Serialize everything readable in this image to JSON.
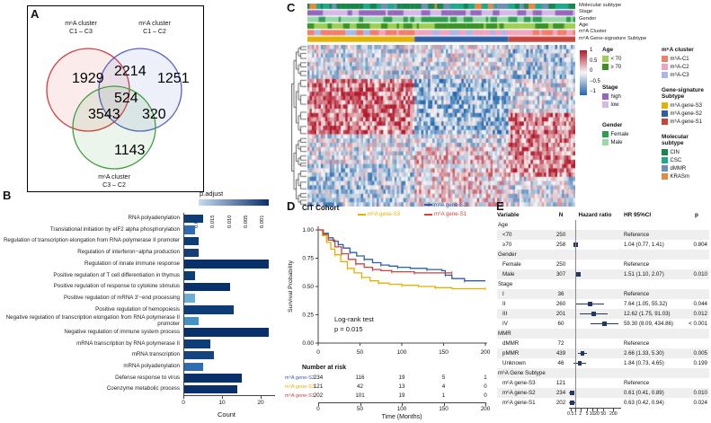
{
  "panels": {
    "a": "A",
    "b": "B",
    "c": "C",
    "d": "D",
    "e": "E"
  },
  "chart_data": [
    {
      "id": "venn",
      "type": "venn",
      "set_labels": [
        [
          "m⁶A cluster",
          "C1 – C3"
        ],
        [
          "m⁶A cluster",
          "C1 – C2"
        ],
        [
          "m⁶A cluster",
          "C3 – C2"
        ]
      ],
      "counts": {
        "c1c3_only": "1929",
        "c1c2_only": "1251",
        "c3c2_only": "1143",
        "c1c3_c1c2": "2214",
        "c1c3_c3c2": "3543",
        "c1c2_c3c2": "320",
        "center": "524"
      },
      "colors": {
        "c1c3": "#d93a3a",
        "c1c2": "#5262c7",
        "c3c2": "#3f9e3f"
      }
    },
    {
      "id": "go_bar",
      "type": "bar",
      "orientation": "horizontal",
      "legend_title": "p.adjust",
      "legend_labels": [
        "0.020",
        "0.015",
        "0.010",
        "0.005",
        "0.001"
      ],
      "legend_gradient": [
        "#c6dbef",
        "#08306b"
      ],
      "xlabel": "Count",
      "xticks": [
        "0",
        "10",
        "20"
      ],
      "xlim": [
        0,
        24
      ],
      "bars": [
        {
          "label": "RNA polyadenylation",
          "value": 5,
          "color": "#0d3d77"
        },
        {
          "label": "Translational initiation by eIF2 alpha phosphorylation",
          "value": 3,
          "color": "#2e6db4"
        },
        {
          "label": "Regulation of transcription elongation from RNA polymerase II promoter",
          "value": 4,
          "color": "#0d3d77"
        },
        {
          "label": "Regulation of interferon−alpha production",
          "value": 4,
          "color": "#123f77"
        },
        {
          "label": "Regulation of innate immune response",
          "value": 22,
          "color": "#08306b"
        },
        {
          "label": "Positive regulation of T cell differentiation in thymus",
          "value": 3,
          "color": "#0d3d77"
        },
        {
          "label": "Positive regulation of response to cytokine stimulus",
          "value": 12,
          "color": "#08306b"
        },
        {
          "label": "Positive regulation of mRNA 3'−end processing",
          "value": 3,
          "color": "#6baed6"
        },
        {
          "label": "Positive regulation of hemopoiesis",
          "value": 13,
          "color": "#0d3d77"
        },
        {
          "label": "Negative regulation of transcription elongation from RNA polymerase II promoter",
          "value": 4,
          "color": "#4292c6"
        },
        {
          "label": "Negative regulation of immune system process",
          "value": 22,
          "color": "#08306b"
        },
        {
          "label": "mRNA transcription by RNA polymerase II",
          "value": 7,
          "color": "#0d3d77"
        },
        {
          "label": "mRNA transcription",
          "value": 8,
          "color": "#16457e"
        },
        {
          "label": "mRNA polyadenylation",
          "value": 5,
          "color": "#2e6db4"
        },
        {
          "label": "Defense response to virus",
          "value": 15,
          "color": "#08306b"
        },
        {
          "label": "Coenzyme metabolic process",
          "value": 14,
          "color": "#08306b"
        }
      ]
    },
    {
      "id": "heatmap",
      "type": "heatmap",
      "colorbar": {
        "ticks": [
          "1",
          "0.5",
          "0",
          "−0.5",
          "−1"
        ],
        "colors": {
          "high": "#b2182b",
          "mid": "#f7f7f7",
          "low": "#2166ac"
        }
      },
      "track_labels": [
        "Molecular subtype",
        "Stage",
        "Gender",
        "Age",
        "m⁶A Cluster",
        "m⁶A Gene-signature Subtype"
      ],
      "subtype_blocks": [
        {
          "label": "m⁶A gene-S3",
          "frac": 0.4
        },
        {
          "label": "m⁶A gene-S2",
          "frac": 0.35
        },
        {
          "label": "m⁶A gene-S1",
          "frac": 0.25
        }
      ],
      "legends": [
        {
          "title": "Age",
          "items": [
            {
              "label": "< 70",
              "color": "#9ecf55"
            },
            {
              "label": "≥ 70",
              "color": "#3a9425"
            }
          ]
        },
        {
          "title": "Stage",
          "items": [
            {
              "label": "high",
              "color": "#9467bd"
            },
            {
              "label": "low",
              "color": "#d5b8e8"
            }
          ]
        },
        {
          "title": "Gender",
          "items": [
            {
              "label": "Female",
              "color": "#2e9e4f"
            },
            {
              "label": "Male",
              "color": "#97d8a6"
            }
          ]
        },
        {
          "title": "m⁶A cluster",
          "items": [
            {
              "label": "m⁶A-C1",
              "color": "#f47c6a"
            },
            {
              "label": "m⁶A-C2",
              "color": "#f2a3c0"
            },
            {
              "label": "m⁶A-C3",
              "color": "#a9b8ea"
            }
          ]
        },
        {
          "title": "Gene-signature Subtype",
          "items": [
            {
              "label": "m⁶A gene-S3",
              "color": "#e2b200"
            },
            {
              "label": "m⁶A gene-S2",
              "color": "#2d5fa8"
            },
            {
              "label": "m⁶A gene-S1",
              "color": "#c8443c"
            }
          ]
        },
        {
          "title": "Molecular subtype",
          "items": [
            {
              "label": "CIN",
              "color": "#18864b"
            },
            {
              "label": "CSC",
              "color": "#1fa98c"
            },
            {
              "label": "dMMR",
              "color": "#6f8fb4"
            },
            {
              "label": "KRASm",
              "color": "#e78a3e"
            }
          ]
        }
      ]
    },
    {
      "id": "km",
      "type": "line",
      "title": "CIT Cohort",
      "ylabel": "Survival Probability",
      "xlabel": "Time (Months)",
      "xticks": [
        "0",
        "50",
        "100",
        "150",
        "200"
      ],
      "yticks": [
        "1.00",
        "0.75",
        "0.50",
        "0.25",
        "0.00"
      ],
      "annotation": [
        "Log-rank test",
        "p = 0.015"
      ],
      "legend_order": [
        "m⁶A gene-S2",
        "m⁶A gene-S3",
        "m⁶A gene-S1"
      ],
      "series": [
        {
          "name": "m⁶A gene-S2",
          "color": "#2d5fa8",
          "points": [
            [
              0,
              1
            ],
            [
              6,
              0.97
            ],
            [
              12,
              0.93
            ],
            [
              18,
              0.9
            ],
            [
              24,
              0.87
            ],
            [
              30,
              0.84
            ],
            [
              38,
              0.8
            ],
            [
              46,
              0.77
            ],
            [
              55,
              0.74
            ],
            [
              65,
              0.71
            ],
            [
              75,
              0.69
            ],
            [
              85,
              0.68
            ],
            [
              95,
              0.67
            ],
            [
              110,
              0.66
            ],
            [
              130,
              0.65
            ],
            [
              148,
              0.64
            ],
            [
              152,
              0.6
            ],
            [
              160,
              0.57
            ],
            [
              175,
              0.55
            ],
            [
              200,
              0.55
            ]
          ]
        },
        {
          "name": "m⁶A gene-S3",
          "color": "#e2b200",
          "points": [
            [
              0,
              1
            ],
            [
              5,
              0.95
            ],
            [
              10,
              0.89
            ],
            [
              15,
              0.83
            ],
            [
              20,
              0.78
            ],
            [
              27,
              0.72
            ],
            [
              35,
              0.66
            ],
            [
              43,
              0.62
            ],
            [
              52,
              0.58
            ],
            [
              62,
              0.55
            ],
            [
              72,
              0.53
            ],
            [
              85,
              0.52
            ],
            [
              100,
              0.51
            ],
            [
              120,
              0.5
            ],
            [
              140,
              0.49
            ],
            [
              160,
              0.48
            ],
            [
              200,
              0.48
            ]
          ]
        },
        {
          "name": "m⁶A gene-S1",
          "color": "#c8443c",
          "points": [
            [
              0,
              1
            ],
            [
              6,
              0.96
            ],
            [
              12,
              0.91
            ],
            [
              20,
              0.85
            ],
            [
              28,
              0.79
            ],
            [
              36,
              0.74
            ],
            [
              45,
              0.7
            ],
            [
              55,
              0.67
            ],
            [
              65,
              0.65
            ],
            [
              75,
              0.64
            ],
            [
              88,
              0.63
            ],
            [
              100,
              0.63
            ],
            [
              115,
              0.62
            ],
            [
              135,
              0.62
            ],
            [
              160,
              0.62
            ]
          ]
        }
      ],
      "risk_table": {
        "title": "Number at risk",
        "rows": [
          {
            "name": "m⁶A gene-S2",
            "color": "#2d5fa8",
            "counts": [
              "234",
              "116",
              "19",
              "5",
              "1"
            ]
          },
          {
            "name": "m⁶A gene-S3",
            "color": "#e2b200",
            "counts": [
              "121",
              "42",
              "13",
              "4",
              "0"
            ]
          },
          {
            "name": "m⁶A gene-S1",
            "color": "#c8443c",
            "counts": [
              "202",
              "101",
              "19",
              "1",
              "0"
            ]
          }
        ]
      }
    },
    {
      "id": "forest",
      "type": "table",
      "columns": [
        "Variable",
        "N",
        "Hazard ratio",
        "HR 95%CI",
        "p"
      ],
      "axis_ticks": [
        "0.5",
        "1",
        "2",
        "5",
        "10",
        "20",
        "50",
        "200"
      ],
      "marker_color": "#1f3864",
      "rows": [
        {
          "variable": "Age",
          "header": true
        },
        {
          "variable": "<70",
          "n": "250",
          "ci_text": "Reference"
        },
        {
          "variable": "≥70",
          "n": "258",
          "hr": 1.04,
          "lo": 0.77,
          "hi": 1.41,
          "ci_text": "1.04 (0.77, 1.41)",
          "p": "0.804"
        },
        {
          "variable": "Gender",
          "header": true
        },
        {
          "variable": "Female",
          "n": "250",
          "ci_text": "Reference"
        },
        {
          "variable": "Male",
          "n": "307",
          "hr": 1.51,
          "lo": 1.1,
          "hi": 2.07,
          "ci_text": "1.51 (1.10, 2.07)",
          "p": "0.010"
        },
        {
          "variable": "Stage",
          "header": true
        },
        {
          "variable": "I",
          "n": "36",
          "ci_text": "Reference"
        },
        {
          "variable": "II",
          "n": "260",
          "hr": 7.64,
          "lo": 1.05,
          "hi": 55.32,
          "ci_text": "7.64 (1.05, 55.32)",
          "p": "0.044"
        },
        {
          "variable": "III",
          "n": "201",
          "hr": 12.62,
          "lo": 1.75,
          "hi": 91.03,
          "ci_text": "12.62 (1.75, 91.03)",
          "p": "0.012"
        },
        {
          "variable": "IV",
          "n": "60",
          "hr": 59.3,
          "lo": 8.09,
          "hi": 434.86,
          "ci_text": "59.30 (8.09, 434.86)",
          "p": "< 0.001"
        },
        {
          "variable": "MMR",
          "header": true
        },
        {
          "variable": "dMMR",
          "n": "72",
          "ci_text": "Reference"
        },
        {
          "variable": "pMMR",
          "n": "439",
          "hr": 2.66,
          "lo": 1.33,
          "hi": 5.3,
          "ci_text": "2.66 (1.33, 5.30)",
          "p": "0.005"
        },
        {
          "variable": "Unknown",
          "n": "46",
          "hr": 1.84,
          "lo": 0.73,
          "hi": 4.65,
          "ci_text": "1.84 (0.73, 4.65)",
          "p": "0.199"
        },
        {
          "variable": "m⁶A Gene Subtype",
          "header": true
        },
        {
          "variable": "m⁶A gene-S3",
          "n": "121",
          "ci_text": "Reference"
        },
        {
          "variable": "m⁶A gene-S2",
          "n": "234",
          "hr": 0.61,
          "lo": 0.41,
          "hi": 0.89,
          "ci_text": "0.61 (0.41, 0.89)",
          "p": "0.010"
        },
        {
          "variable": "m⁶A gene-S1",
          "n": "202",
          "hr": 0.63,
          "lo": 0.42,
          "hi": 0.94,
          "ci_text": "0.63 (0.42, 0.94)",
          "p": "0.024"
        }
      ]
    }
  ]
}
